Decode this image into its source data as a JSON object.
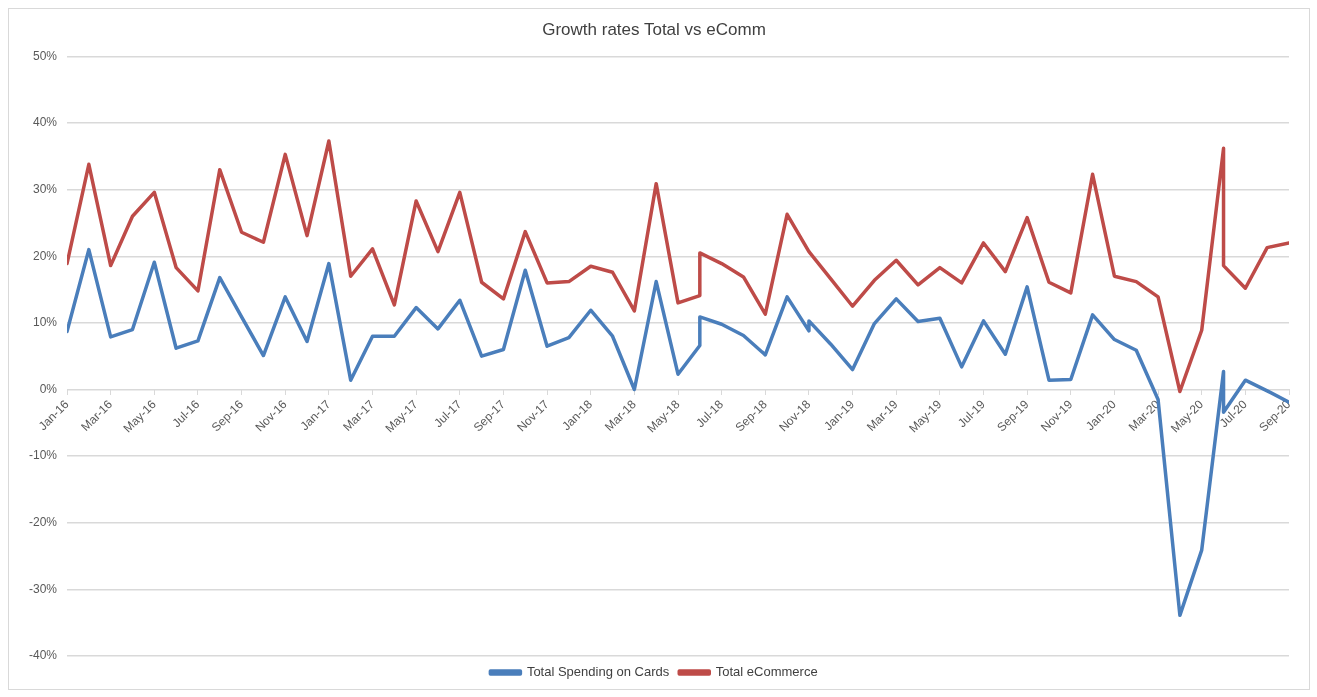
{
  "chart_data": {
    "type": "line",
    "title": "Growth rates Total vs eComm",
    "xlim": [
      "2016-01",
      "2020-09"
    ],
    "xticks": [
      {
        "value": "2016-01",
        "label": "Jan-16"
      },
      {
        "value": "2016-03",
        "label": "Mar-16"
      },
      {
        "value": "2016-05",
        "label": "May-16"
      },
      {
        "value": "2016-07",
        "label": "Jul-16"
      },
      {
        "value": "2016-09",
        "label": "Sep-16"
      },
      {
        "value": "2016-11",
        "label": "Nov-16"
      },
      {
        "value": "2017-01",
        "label": "Jan-17"
      },
      {
        "value": "2017-03",
        "label": "Mar-17"
      },
      {
        "value": "2017-05",
        "label": "May-17"
      },
      {
        "value": "2017-07",
        "label": "Jul-17"
      },
      {
        "value": "2017-09",
        "label": "Sep-17"
      },
      {
        "value": "2017-11",
        "label": "Nov-17"
      },
      {
        "value": "2018-01",
        "label": "Jan-18"
      },
      {
        "value": "2018-03",
        "label": "Mar-18"
      },
      {
        "value": "2018-05",
        "label": "May-18"
      },
      {
        "value": "2018-07",
        "label": "Jul-18"
      },
      {
        "value": "2018-09",
        "label": "Sep-18"
      },
      {
        "value": "2018-11",
        "label": "Nov-18"
      },
      {
        "value": "2019-01",
        "label": "Jan-19"
      },
      {
        "value": "2019-03",
        "label": "Mar-19"
      },
      {
        "value": "2019-05",
        "label": "May-19"
      },
      {
        "value": "2019-07",
        "label": "Jul-19"
      },
      {
        "value": "2019-09",
        "label": "Sep-19"
      },
      {
        "value": "2019-11",
        "label": "Nov-19"
      },
      {
        "value": "2020-01",
        "label": "Jan-20"
      },
      {
        "value": "2020-03",
        "label": "Mar-20"
      },
      {
        "value": "2020-05",
        "label": "May-20"
      },
      {
        "value": "2020-07",
        "label": "Jul-20"
      },
      {
        "value": "2020-09",
        "label": "Sep-20"
      }
    ],
    "ylim": [
      -40,
      50
    ],
    "yticks": [
      {
        "value": -40,
        "label": "-40%"
      },
      {
        "value": -30,
        "label": "-30%"
      },
      {
        "value": -20,
        "label": "-20%"
      },
      {
        "value": -10,
        "label": "-10%"
      },
      {
        "value": 0,
        "label": "0%"
      },
      {
        "value": 10,
        "label": "10%"
      },
      {
        "value": 20,
        "label": "20%"
      },
      {
        "value": 30,
        "label": "30%"
      },
      {
        "value": 40,
        "label": "40%"
      },
      {
        "value": 50,
        "label": "50%"
      }
    ],
    "grid": "y",
    "legend": "bottom",
    "marker": "none",
    "line_style": "solid",
    "series": [
      {
        "name": "Total Spending on Cards",
        "color": "#4a7ebb",
        "x": [
          "2016-01",
          "2016-02",
          "2016-03",
          "2016-04",
          "2016-05",
          "2016-06",
          "2016-07",
          "2016-08",
          "2016-09",
          "2016-10",
          "2016-11",
          "2016-12",
          "2017-01",
          "2017-02",
          "2017-03",
          "2017-04",
          "2017-05",
          "2017-06",
          "2017-07",
          "2017-08",
          "2017-09",
          "2017-10",
          "2017-11",
          "2017-12",
          "2018-01",
          "2018-02",
          "2018-03",
          "2018-04",
          "2018-05",
          "2018-06",
          "2018-06",
          "2018-07",
          "2018-08",
          "2018-09",
          "2018-10",
          "2018-11",
          "2018-11",
          "2018-12",
          "2019-01",
          "2019-02",
          "2019-03",
          "2019-04",
          "2019-05",
          "2019-06",
          "2019-07",
          "2019-08",
          "2019-09",
          "2019-10",
          "2019-11",
          "2019-12",
          "2020-01",
          "2020-02",
          "2020-03",
          "2020-04",
          "2020-05",
          "2020-06",
          "2020-06",
          "2020-07",
          "2020-08",
          "2020-09"
        ],
        "values": [
          8.7,
          21.0,
          7.9,
          9.0,
          19.1,
          6.2,
          7.3,
          16.8,
          10.9,
          5.1,
          13.9,
          7.2,
          18.9,
          1.4,
          8.0,
          8.0,
          12.3,
          9.1,
          13.4,
          5.0,
          6.0,
          17.9,
          6.5,
          7.8,
          11.9,
          8.0,
          0,
          16.2,
          2.3,
          6.6,
          10.9,
          9.8,
          8.1,
          5.2,
          13.9,
          8.8,
          10.3,
          6.8,
          3.0,
          9.9,
          13.6,
          10.2,
          10.7,
          3.4,
          10.3,
          5.3,
          15.4,
          1.4,
          1.5,
          11.2,
          7.5,
          5.9,
          -1.5,
          -33.9,
          -24.1,
          2.7,
          -3.4,
          1.4,
          -0.2,
          -1.9
        ]
      },
      {
        "name": "Total eCommerce",
        "color": "#be4b48",
        "x": [
          "2016-01",
          "2016-02",
          "2016-03",
          "2016-04",
          "2016-05",
          "2016-06",
          "2016-07",
          "2016-08",
          "2016-09",
          "2016-10",
          "2016-11",
          "2016-12",
          "2017-01",
          "2017-02",
          "2017-03",
          "2017-04",
          "2017-05",
          "2017-06",
          "2017-07",
          "2017-08",
          "2017-09",
          "2017-10",
          "2017-11",
          "2017-12",
          "2018-01",
          "2018-02",
          "2018-03",
          "2018-04",
          "2018-05",
          "2018-06",
          "2018-06",
          "2018-07",
          "2018-08",
          "2018-09",
          "2018-10",
          "2018-11",
          "2018-12",
          "2019-01",
          "2019-02",
          "2019-03",
          "2019-04",
          "2019-05",
          "2019-06",
          "2019-07",
          "2019-08",
          "2019-09",
          "2019-10",
          "2019-11",
          "2019-12",
          "2020-01",
          "2020-02",
          "2020-03",
          "2020-04",
          "2020-05",
          "2020-06",
          "2020-06",
          "2020-07",
          "2020-08",
          "2020-09"
        ],
        "values": [
          18.9,
          33.8,
          18.6,
          26.0,
          29.6,
          18.3,
          14.8,
          33.0,
          23.6,
          22.1,
          35.3,
          23.1,
          37.3,
          17.0,
          21.1,
          12.7,
          28.3,
          20.7,
          29.6,
          16.1,
          13.6,
          23.7,
          16.0,
          16.2,
          18.5,
          17.6,
          11.8,
          30.9,
          13.0,
          14.1,
          20.5,
          18.9,
          16.9,
          11.3,
          26.3,
          20.7,
          16.6,
          12.5,
          16.4,
          19.4,
          15.7,
          18.3,
          16.0,
          22.0,
          17.7,
          25.8,
          16.1,
          14.5,
          32.3,
          17.0,
          16.2,
          13.9,
          -0.3,
          8.9,
          36.2,
          18.6,
          15.2,
          21.3,
          22.0
        ]
      }
    ]
  }
}
